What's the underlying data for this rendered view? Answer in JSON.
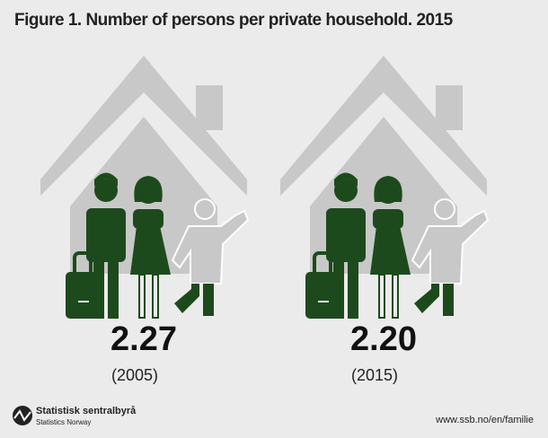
{
  "header": {
    "title": "Figure 1. Number of persons per private household. 2015"
  },
  "panels": [
    {
      "value": "2.27",
      "label": "(2005)"
    },
    {
      "value": "2.20",
      "label": "(2015)"
    }
  ],
  "footer": {
    "logo_name": "Statistisk sentralbyrå",
    "logo_sub": "Statistics Norway",
    "url": "www.ssb.no/en/familie"
  }
}
